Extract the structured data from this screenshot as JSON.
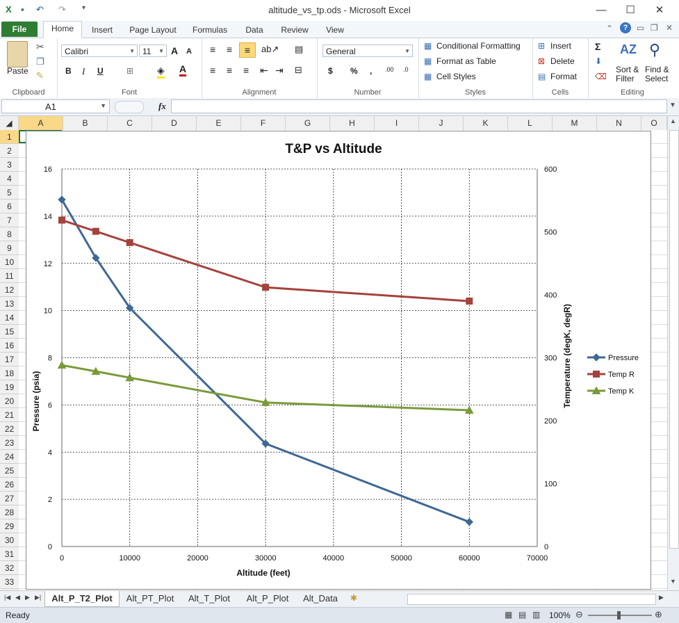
{
  "window": {
    "title": "altitude_vs_tp.ods  -  Microsoft Excel"
  },
  "ribbon": {
    "tabs": [
      "File",
      "Home",
      "Insert",
      "Page Layout",
      "Formulas",
      "Data",
      "Review",
      "View"
    ],
    "clipboard": {
      "paste": "Paste",
      "label": "Clipboard"
    },
    "font": {
      "name": "Calibri",
      "size": "11",
      "label": "Font"
    },
    "alignment": {
      "label": "Alignment"
    },
    "number": {
      "format": "General",
      "label": "Number"
    },
    "styles": {
      "conditional": "Conditional Formatting",
      "table": "Format as Table",
      "cell_styles": "Cell Styles",
      "label": "Styles"
    },
    "cells": {
      "insert": "Insert",
      "delete": "Delete",
      "format": "Format",
      "label": "Cells"
    },
    "editing": {
      "sort": "Sort &",
      "filter": "Filter",
      "find": "Find &",
      "select": "Select",
      "label": "Editing"
    }
  },
  "formula_bar": {
    "name_box": "A1",
    "fx": "fx",
    "content": ""
  },
  "grid": {
    "columns": [
      "A",
      "B",
      "C",
      "D",
      "E",
      "F",
      "G",
      "H",
      "I",
      "J",
      "K",
      "L",
      "M",
      "N",
      "O"
    ],
    "rows": [
      "1",
      "2",
      "3",
      "4",
      "5",
      "6",
      "7",
      "8",
      "9",
      "10",
      "11",
      "12",
      "13",
      "14",
      "15",
      "16",
      "17",
      "18",
      "19",
      "20",
      "21",
      "22",
      "23",
      "24",
      "25",
      "26",
      "27",
      "28",
      "29",
      "30",
      "31",
      "32",
      "33"
    ]
  },
  "sheet_tabs": [
    "Alt_P_T2_Plot",
    "Alt_PT_Plot",
    "Alt_T_Plot",
    "Alt_P_Plot",
    "Alt_Data"
  ],
  "status": {
    "ready": "Ready",
    "zoom": "100%"
  },
  "chart_data": {
    "type": "line",
    "title": "T&P vs Altitude",
    "xlabel": "Altitude (feet)",
    "ylabel": "Pressure (psia)",
    "y2label": "Temperature (degK, degR)",
    "xlim": [
      0,
      70000
    ],
    "ylim": [
      0,
      16
    ],
    "y2lim": [
      0,
      600
    ],
    "xticks": [
      "0",
      "10000",
      "20000",
      "30000",
      "40000",
      "50000",
      "60000",
      "70000"
    ],
    "yticks": [
      "0",
      "2",
      "4",
      "6",
      "8",
      "10",
      "12",
      "14",
      "16"
    ],
    "y2ticks": [
      "0",
      "100",
      "200",
      "300",
      "400",
      "500",
      "600"
    ],
    "grid": true,
    "legend_position": "right",
    "series": [
      {
        "name": "Pressure",
        "axis": "left",
        "color": "#3e6895",
        "marker": "diamond",
        "x": [
          0,
          5000,
          10000,
          30000,
          60000
        ],
        "y": [
          14.7,
          12.23,
          10.11,
          4.36,
          1.04
        ]
      },
      {
        "name": "Temp  R",
        "axis": "right",
        "color": "#a4423c",
        "marker": "square",
        "x": [
          0,
          5000,
          10000,
          30000,
          60000
        ],
        "y": [
          518.7,
          500.9,
          483.0,
          411.9,
          389.97
        ]
      },
      {
        "name": "Temp  K",
        "axis": "right",
        "color": "#7a9a3a",
        "marker": "triangle",
        "x": [
          0,
          5000,
          10000,
          30000,
          60000
        ],
        "y": [
          288.2,
          278.3,
          268.3,
          228.8,
          216.6
        ]
      }
    ]
  }
}
